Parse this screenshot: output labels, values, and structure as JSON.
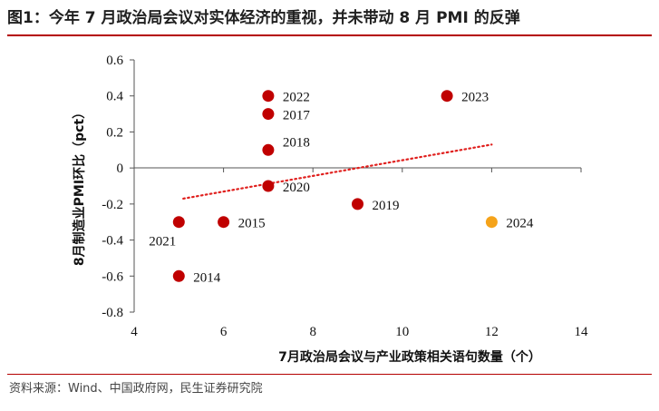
{
  "title": "图1：今年 7 月政治局会议对实体经济的重视，并未带动 8 月 PMI 的反弹",
  "source": "资料来源：Wind、中国政府网，民生证券研究院",
  "colors": {
    "main": "#c00000",
    "highlight": "#f5a31a",
    "trend": "#e0201e",
    "rule": "#b40000"
  },
  "chart_data": {
    "type": "scatter",
    "title": "图1：今年 7 月政治局会议对实体经济的重视，并未带动 8 月 PMI 的反弹",
    "xlabel": "7月政治局会议与产业政策相关语句数量（个）",
    "ylabel": "8月制造业PMI环比（pct）",
    "xlim": [
      4,
      14
    ],
    "ylim": [
      -0.8,
      0.6
    ],
    "x_ticks": [
      "4",
      "6",
      "8",
      "10",
      "12",
      "14"
    ],
    "y_ticks": [
      "0.6",
      "0.4",
      "0.2",
      "0",
      "-0.2",
      "-0.4",
      "-0.6",
      "-0.8"
    ],
    "grid": false,
    "points": [
      {
        "label": "2014",
        "x": 5,
        "y": -0.6,
        "highlight": false,
        "label_pos": "right"
      },
      {
        "label": "2015",
        "x": 6,
        "y": -0.3,
        "highlight": false,
        "label_pos": "right"
      },
      {
        "label": "2017",
        "x": 7,
        "y": 0.3,
        "highlight": false,
        "label_pos": "right"
      },
      {
        "label": "2018",
        "x": 7,
        "y": 0.1,
        "highlight": false,
        "label_pos": "upper-right"
      },
      {
        "label": "2019",
        "x": 9,
        "y": -0.2,
        "highlight": false,
        "label_pos": "right"
      },
      {
        "label": "2020",
        "x": 7,
        "y": -0.1,
        "highlight": false,
        "label_pos": "right"
      },
      {
        "label": "2021",
        "x": 5,
        "y": -0.3,
        "highlight": false,
        "label_pos": "below-left"
      },
      {
        "label": "2022",
        "x": 7,
        "y": 0.4,
        "highlight": false,
        "label_pos": "right"
      },
      {
        "label": "2023",
        "x": 11,
        "y": 0.4,
        "highlight": false,
        "label_pos": "right"
      },
      {
        "label": "2024",
        "x": 12,
        "y": -0.3,
        "highlight": true,
        "label_pos": "right"
      }
    ],
    "trendline": {
      "style": "dotted",
      "x": [
        5.1,
        12
      ],
      "y": [
        -0.17,
        0.13
      ]
    }
  }
}
